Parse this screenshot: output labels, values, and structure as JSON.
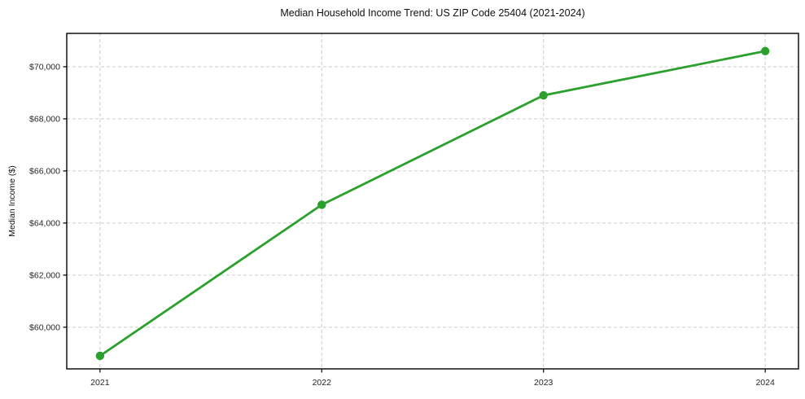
{
  "chart_data": {
    "type": "line",
    "title": "Median Household Income Trend: US ZIP Code 25404 (2021-2024)",
    "xlabel": "",
    "ylabel": "Median Income ($)",
    "x": [
      2021,
      2022,
      2023,
      2024
    ],
    "xtick_labels": [
      "2021",
      "2022",
      "2023",
      "2024"
    ],
    "series": [
      {
        "values": [
          58900,
          64700,
          68900,
          70600
        ],
        "color": "#2ca02c",
        "marker": "circle"
      }
    ],
    "yticks": [
      60000,
      62000,
      64000,
      66000,
      68000,
      70000
    ],
    "ytick_labels": [
      "$60,000",
      "$62,000",
      "$64,000",
      "$66,000",
      "$68,000",
      "$70,000"
    ],
    "xlim": [
      2020.85,
      2024.15
    ],
    "ylim": [
      58400,
      71280
    ],
    "grid": true,
    "legend_position": "none",
    "colors": {
      "line": "#2ca02c",
      "grid": "#cccccc",
      "spine": "#000000",
      "tick_label": "#262626",
      "background": "#ffffff"
    }
  }
}
